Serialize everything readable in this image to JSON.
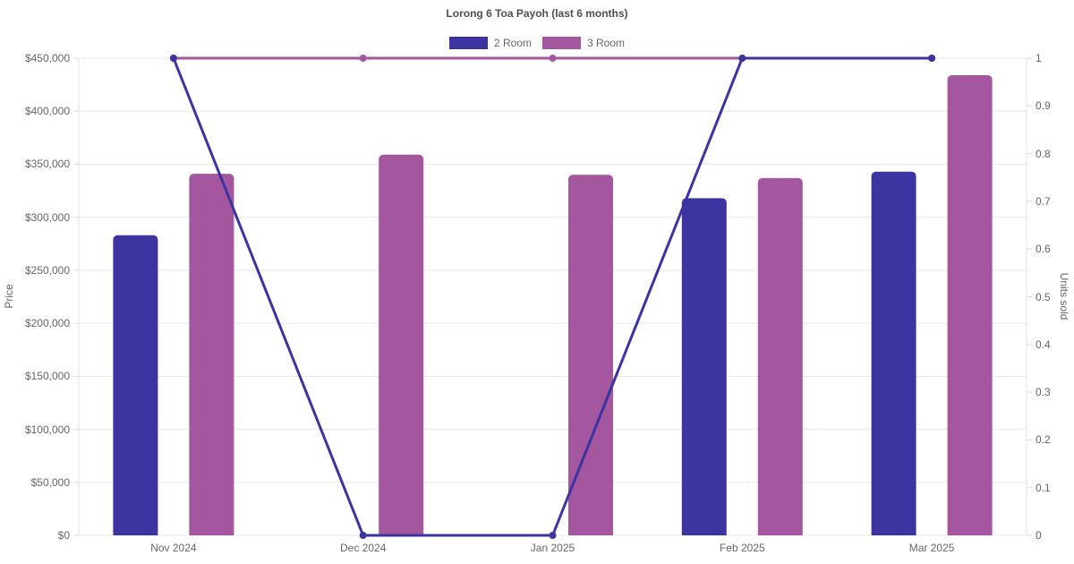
{
  "chart_data": {
    "type": "combo-bar-line",
    "title": "Lorong 6 Toa Payoh (last 6 months)",
    "categories": [
      "Nov 2024",
      "Dec 2024",
      "Jan 2025",
      "Feb 2025",
      "Mar 2025"
    ],
    "series": [
      {
        "name": "2 Room",
        "color": "#3b34a1",
        "bar_values_price": [
          283000,
          null,
          null,
          318000,
          343000
        ],
        "line_values_units": [
          1,
          0,
          0,
          1,
          1
        ]
      },
      {
        "name": "3 Room",
        "color": "#a4569e",
        "bar_values_price": [
          341000,
          359000,
          340000,
          337000,
          434000
        ],
        "line_values_units": [
          1,
          1,
          1,
          1,
          1
        ]
      }
    ],
    "left_axis": {
      "label": "Price",
      "min": 0,
      "max": 450000,
      "tick_labels": [
        "$450,000",
        "$400,000",
        "$350,000",
        "$300,000",
        "$250,000",
        "$200,000",
        "$150,000",
        "$100,000",
        "$50,000",
        "$0"
      ]
    },
    "right_axis": {
      "label": "Units sold",
      "min": 0,
      "max": 1,
      "tick_labels": [
        "1",
        "0.9",
        "0.8",
        "0.7",
        "0.6",
        "0.5",
        "0.4",
        "0.3",
        "0.2",
        "0.1",
        "0"
      ]
    },
    "grid": true,
    "legend_position": "top"
  },
  "colors": {
    "grid": "#e8e8e8",
    "axis_border": "#e2e2e2",
    "tick_mark": "#dcdcdc",
    "tick_text": "#666666",
    "title_text": "#4f4f4f"
  }
}
